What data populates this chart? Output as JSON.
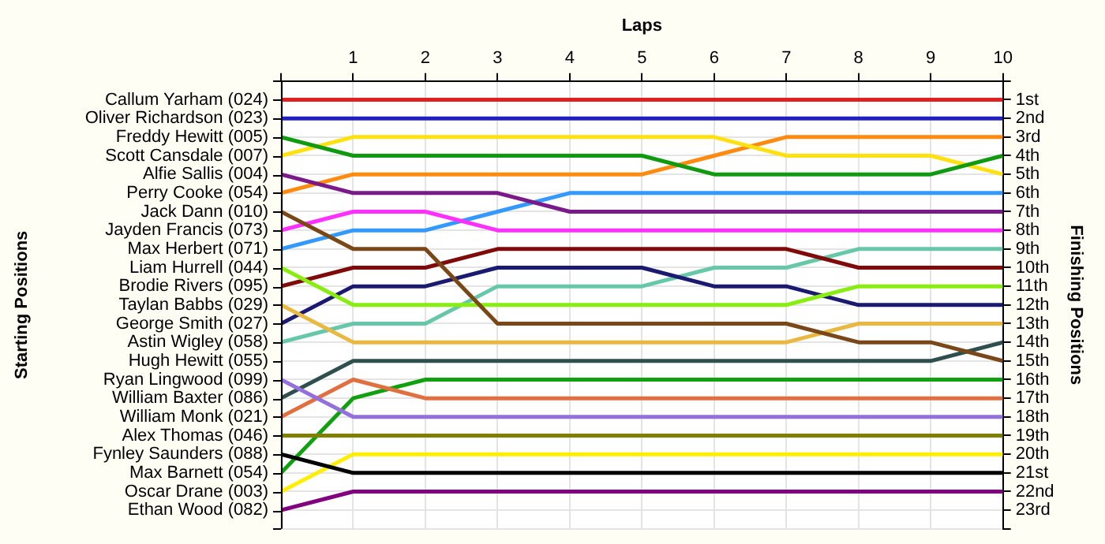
{
  "chart_data": {
    "type": "line",
    "xlabel": "Laps",
    "ylabel": "Finishing Positions",
    "x": [
      0,
      1,
      2,
      3,
      4,
      5,
      6,
      7,
      8,
      9,
      10
    ],
    "xlim": [
      0,
      10
    ],
    "xticks": [
      {
        "value": 0,
        "label": null
      },
      1,
      2,
      3,
      4,
      5,
      6,
      7,
      8,
      9,
      10
    ],
    "ylim": [
      24,
      0
    ],
    "yticks": [
      {
        "value": 0,
        "label": null
      },
      {
        "value": 1,
        "label": "1st"
      },
      {
        "value": 2,
        "label": "2nd"
      },
      {
        "value": 3,
        "label": "3rd"
      },
      {
        "value": 4,
        "label": "4th"
      },
      {
        "value": 5,
        "label": "5th"
      },
      {
        "value": 6,
        "label": "6th"
      },
      {
        "value": 7,
        "label": "7th"
      },
      {
        "value": 8,
        "label": "8th"
      },
      {
        "value": 9,
        "label": "9th"
      },
      {
        "value": 10,
        "label": "10th"
      },
      {
        "value": 11,
        "label": "11th"
      },
      {
        "value": 12,
        "label": "12th"
      },
      {
        "value": 13,
        "label": "13th"
      },
      {
        "value": 14,
        "label": "14th"
      },
      {
        "value": 15,
        "label": "15th"
      },
      {
        "value": 16,
        "label": "16th"
      },
      {
        "value": 17,
        "label": "17th"
      },
      {
        "value": 18,
        "label": "18th"
      },
      {
        "value": 19,
        "label": "19th"
      },
      {
        "value": 20,
        "label": "20th"
      },
      {
        "value": 21,
        "label": "21st"
      },
      {
        "value": 22,
        "label": "22nd"
      },
      {
        "value": 23,
        "label": "23rd"
      },
      {
        "value": 24,
        "label": null
      }
    ],
    "annotations": [
      "Starting Positions",
      "Callum Yarham (024)",
      "Oliver Richardson (023)",
      "Freddy Hewitt (005)",
      "Scott Cansdale (007)",
      "Alfie Sallis (004)",
      "Perry Cooke (054)",
      "Jack Dann (010)",
      "Jayden Francis (073)",
      "Max Herbert (071)",
      "Liam Hurrell (044)",
      "Brodie Rivers (095)",
      "Taylan Babbs (029)",
      "George Smith (027)",
      "Astin Wigley (058)",
      "Hugh Hewitt (055)",
      "Ryan Lingwood (099)",
      "William Baxter (086)",
      "William Monk (021)",
      "Alex Thomas (046)",
      "Fynley Saunders (088)",
      "Max Barnett (054)",
      "Oscar Drane (003)",
      "Ethan Wood (082)"
    ],
    "grid": true,
    "series": [
      {
        "color": "#e02020",
        "values": [
          1,
          1,
          1,
          1,
          1,
          1,
          1,
          1,
          1,
          1,
          1
        ]
      },
      {
        "color": "#2020c0",
        "values": [
          2,
          2,
          2,
          2,
          2,
          2,
          2,
          2,
          2,
          2,
          2
        ]
      },
      {
        "color": "#109a10",
        "values": [
          3,
          4,
          4,
          4,
          4,
          4,
          5,
          5,
          5,
          5,
          4
        ]
      },
      {
        "color": "#ffe010",
        "values": [
          4,
          3,
          3,
          3,
          3,
          3,
          3,
          4,
          4,
          4,
          5
        ]
      },
      {
        "color": "#7a1a88",
        "values": [
          5,
          6,
          6,
          6,
          7,
          7,
          7,
          7,
          7,
          7,
          7
        ]
      },
      {
        "color": "#ff8a10",
        "values": [
          6,
          5,
          5,
          5,
          5,
          5,
          4,
          3,
          3,
          3,
          3
        ]
      },
      {
        "color": "#7a4818",
        "values": [
          7,
          9,
          9,
          13,
          13,
          13,
          13,
          13,
          14,
          14,
          15
        ]
      },
      {
        "color": "#ff30ff",
        "values": [
          8,
          7,
          7,
          8,
          8,
          8,
          8,
          8,
          8,
          8,
          8
        ]
      },
      {
        "color": "#3399ff",
        "values": [
          9,
          8,
          8,
          7,
          6,
          6,
          6,
          6,
          6,
          6,
          6
        ]
      },
      {
        "color": "#88ee10",
        "values": [
          10,
          12,
          12,
          12,
          12,
          12,
          12,
          12,
          11,
          11,
          11
        ]
      },
      {
        "color": "#800a0a",
        "values": [
          11,
          10,
          10,
          9,
          9,
          9,
          9,
          9,
          10,
          10,
          10
        ]
      },
      {
        "color": "#e8b840",
        "values": [
          12,
          14,
          14,
          14,
          14,
          14,
          14,
          14,
          13,
          13,
          13
        ]
      },
      {
        "color": "#1a1a70",
        "values": [
          13,
          11,
          11,
          10,
          10,
          10,
          11,
          11,
          12,
          12,
          12
        ]
      },
      {
        "color": "#66c8a8",
        "values": [
          14,
          13,
          13,
          11,
          11,
          11,
          10,
          10,
          9,
          9,
          9
        ]
      },
      {
        "color": "#9370db",
        "values": [
          16,
          18,
          18,
          18,
          18,
          18,
          18,
          18,
          18,
          18,
          18
        ]
      },
      {
        "color": "#2f4f4f",
        "values": [
          17,
          15,
          15,
          15,
          15,
          15,
          15,
          15,
          15,
          15,
          14
        ]
      },
      {
        "color": "#e07040",
        "values": [
          18,
          16,
          17,
          17,
          17,
          17,
          17,
          17,
          17,
          17,
          17
        ]
      },
      {
        "color": "#808000",
        "values": [
          19,
          19,
          19,
          19,
          19,
          19,
          19,
          19,
          19,
          19,
          19
        ]
      },
      {
        "color": "#000000",
        "values": [
          20,
          21,
          21,
          21,
          21,
          21,
          21,
          21,
          21,
          21,
          21
        ]
      },
      {
        "color": "#10a010",
        "values": [
          21,
          17,
          16,
          16,
          16,
          16,
          16,
          16,
          16,
          16,
          16
        ]
      },
      {
        "color": "#ffee00",
        "values": [
          22,
          20,
          20,
          20,
          20,
          20,
          20,
          20,
          20,
          20,
          20
        ]
      },
      {
        "color": "#800080",
        "values": [
          23,
          22,
          22,
          22,
          22,
          22,
          22,
          22,
          22,
          22,
          22
        ]
      }
    ]
  }
}
